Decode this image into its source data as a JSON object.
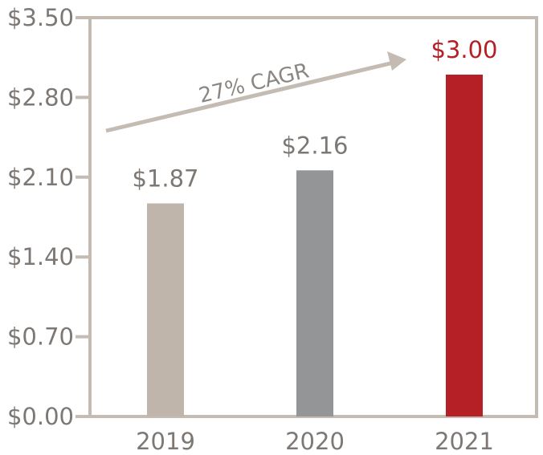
{
  "chart_data": {
    "type": "bar",
    "categories": [
      "2019",
      "2020",
      "2021"
    ],
    "values": [
      1.87,
      2.16,
      3.0
    ],
    "data_labels": [
      "$1.87",
      "$2.16",
      "$3.00"
    ],
    "bar_colors": [
      "#bfb5ab",
      "#939597",
      "#b52026"
    ],
    "label_colors": [
      "#7d7874",
      "#7d7874",
      "#b52026"
    ],
    "ylim": [
      0,
      3.5
    ],
    "yticks": [
      0,
      0.7,
      1.4,
      2.1,
      2.8,
      3.5
    ],
    "ytick_labels": [
      "$0.00",
      "$0.70",
      "$1.40",
      "$2.10",
      "$2.80",
      "$3.50"
    ],
    "title": "",
    "xlabel": "",
    "ylabel": "",
    "annotation": "27% CAGR",
    "grid": false,
    "frame_color": "#c4bbb3",
    "arrow_color": "#c4bbb3"
  }
}
